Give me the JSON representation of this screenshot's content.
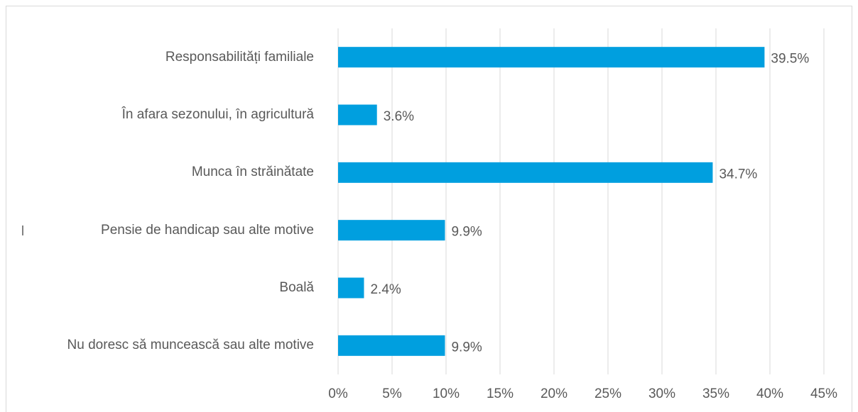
{
  "chart_data": {
    "type": "barh",
    "categories": [
      "Responsabilități familiale",
      "În afara sezonului, în agricultură",
      "Munca în străinătate",
      "Pensie de handicap sau alte motive",
      "Boală",
      "Nu doresc să muncească sau alte motive"
    ],
    "values": [
      39.5,
      3.6,
      34.7,
      9.9,
      2.4,
      9.9
    ],
    "value_labels": [
      "39.5%",
      "3.6%",
      "34.7%",
      "9.9%",
      "2.4%",
      "9.9%"
    ],
    "color": "#009fdf",
    "xlim": [
      0,
      45
    ],
    "xticks": [
      {
        "value": 0,
        "label": "0%"
      },
      {
        "value": 5,
        "label": "5%"
      },
      {
        "value": 10,
        "label": "10%"
      },
      {
        "value": 15,
        "label": "15%"
      },
      {
        "value": 20,
        "label": "20%"
      },
      {
        "value": 25,
        "label": "25%"
      },
      {
        "value": 30,
        "label": "30%"
      },
      {
        "value": 35,
        "label": "35%"
      },
      {
        "value": 40,
        "label": "40%"
      },
      {
        "value": 45,
        "label": "45%"
      }
    ],
    "grid": true
  }
}
